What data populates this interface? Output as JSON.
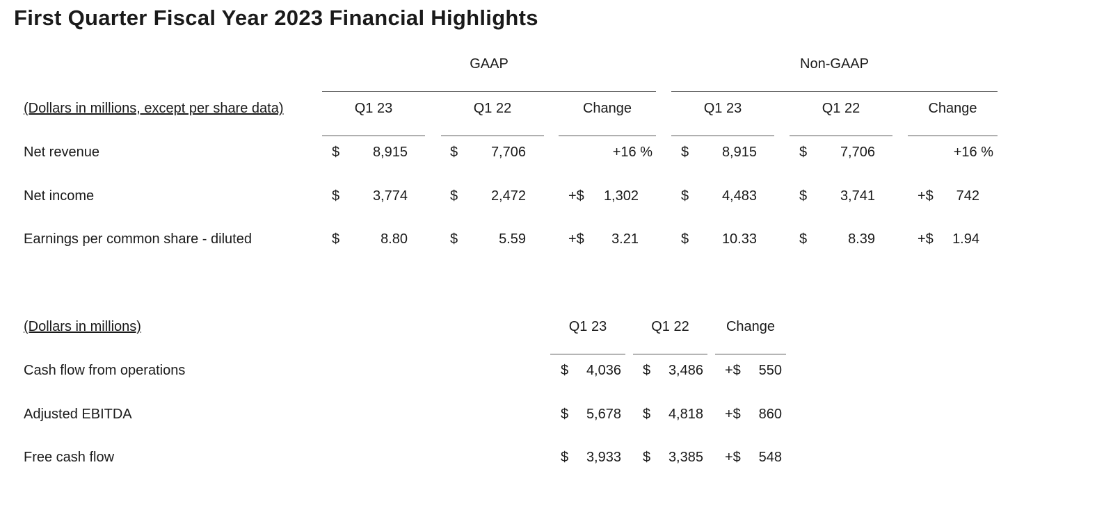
{
  "title": "First Quarter Fiscal Year 2023 Financial Highlights",
  "table1": {
    "group_headers": {
      "gaap": "GAAP",
      "non_gaap": "Non-GAAP"
    },
    "row_header": "(Dollars in millions, except per share data)",
    "columns": [
      "Q1 23",
      "Q1 22",
      "Change",
      "Q1 23",
      "Q1 22",
      "Change"
    ],
    "rows": [
      {
        "label": "Net revenue",
        "gaap_q123": {
          "cur": "$",
          "val": "8,915"
        },
        "gaap_q122": {
          "cur": "$",
          "val": "7,706"
        },
        "gaap_change": {
          "prefix": "",
          "val": "+16 %"
        },
        "ng_q123": {
          "cur": "$",
          "val": "8,915"
        },
        "ng_q122": {
          "cur": "$",
          "val": "7,706"
        },
        "ng_change": {
          "prefix": "",
          "val": "+16 %"
        }
      },
      {
        "label": "Net income",
        "gaap_q123": {
          "cur": "$",
          "val": "3,774"
        },
        "gaap_q122": {
          "cur": "$",
          "val": "2,472"
        },
        "gaap_change": {
          "prefix": "+$",
          "val": "1,302"
        },
        "ng_q123": {
          "cur": "$",
          "val": "4,483"
        },
        "ng_q122": {
          "cur": "$",
          "val": "3,741"
        },
        "ng_change": {
          "prefix": "+$",
          "val": "742"
        }
      },
      {
        "label": "Earnings per common share - diluted",
        "gaap_q123": {
          "cur": "$",
          "val": "8.80"
        },
        "gaap_q122": {
          "cur": "$",
          "val": "5.59"
        },
        "gaap_change": {
          "prefix": "+$",
          "val": "3.21"
        },
        "ng_q123": {
          "cur": "$",
          "val": "10.33"
        },
        "ng_q122": {
          "cur": "$",
          "val": "8.39"
        },
        "ng_change": {
          "prefix": "+$",
          "val": "1.94"
        }
      }
    ]
  },
  "table2": {
    "row_header": "(Dollars in millions)",
    "columns": [
      "Q1 23",
      "Q1 22",
      "Change"
    ],
    "rows": [
      {
        "label": "Cash flow from operations",
        "q123": {
          "cur": "$",
          "val": "4,036"
        },
        "q122": {
          "cur": "$",
          "val": "3,486"
        },
        "change": {
          "prefix": "+$",
          "val": "550"
        }
      },
      {
        "label": "Adjusted EBITDA",
        "q123": {
          "cur": "$",
          "val": "5,678"
        },
        "q122": {
          "cur": "$",
          "val": "4,818"
        },
        "change": {
          "prefix": "+$",
          "val": "860"
        }
      },
      {
        "label": "Free cash flow",
        "q123": {
          "cur": "$",
          "val": "3,933"
        },
        "q122": {
          "cur": "$",
          "val": "3,385"
        },
        "change": {
          "prefix": "+$",
          "val": "548"
        }
      }
    ]
  }
}
